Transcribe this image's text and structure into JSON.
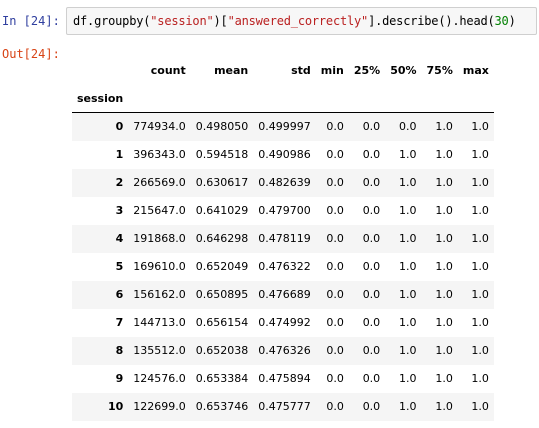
{
  "input_prompt": "In [24]:",
  "output_prompt": "Out[24]:",
  "code": {
    "part1": "df.groupby(",
    "str1": "\"session\"",
    "part2": ")[",
    "str2": "\"answered_correctly\"",
    "part3": "].describe().head(",
    "num": "30",
    "part4": ")"
  },
  "table": {
    "columns": [
      "count",
      "mean",
      "std",
      "min",
      "25%",
      "50%",
      "75%",
      "max"
    ],
    "index_name": "session",
    "rows": [
      {
        "idx": "0",
        "cells": [
          "774934.0",
          "0.498050",
          "0.499997",
          "0.0",
          "0.0",
          "0.0",
          "1.0",
          "1.0"
        ]
      },
      {
        "idx": "1",
        "cells": [
          "396343.0",
          "0.594518",
          "0.490986",
          "0.0",
          "0.0",
          "1.0",
          "1.0",
          "1.0"
        ]
      },
      {
        "idx": "2",
        "cells": [
          "266569.0",
          "0.630617",
          "0.482639",
          "0.0",
          "0.0",
          "1.0",
          "1.0",
          "1.0"
        ]
      },
      {
        "idx": "3",
        "cells": [
          "215647.0",
          "0.641029",
          "0.479700",
          "0.0",
          "0.0",
          "1.0",
          "1.0",
          "1.0"
        ]
      },
      {
        "idx": "4",
        "cells": [
          "191868.0",
          "0.646298",
          "0.478119",
          "0.0",
          "0.0",
          "1.0",
          "1.0",
          "1.0"
        ]
      },
      {
        "idx": "5",
        "cells": [
          "169610.0",
          "0.652049",
          "0.476322",
          "0.0",
          "0.0",
          "1.0",
          "1.0",
          "1.0"
        ]
      },
      {
        "idx": "6",
        "cells": [
          "156162.0",
          "0.650895",
          "0.476689",
          "0.0",
          "0.0",
          "1.0",
          "1.0",
          "1.0"
        ]
      },
      {
        "idx": "7",
        "cells": [
          "144713.0",
          "0.656154",
          "0.474992",
          "0.0",
          "0.0",
          "1.0",
          "1.0",
          "1.0"
        ]
      },
      {
        "idx": "8",
        "cells": [
          "135512.0",
          "0.652038",
          "0.476326",
          "0.0",
          "0.0",
          "1.0",
          "1.0",
          "1.0"
        ]
      },
      {
        "idx": "9",
        "cells": [
          "124576.0",
          "0.653384",
          "0.475894",
          "0.0",
          "0.0",
          "1.0",
          "1.0",
          "1.0"
        ]
      },
      {
        "idx": "10",
        "cells": [
          "122699.0",
          "0.653746",
          "0.475777",
          "0.0",
          "0.0",
          "1.0",
          "1.0",
          "1.0"
        ]
      }
    ]
  }
}
